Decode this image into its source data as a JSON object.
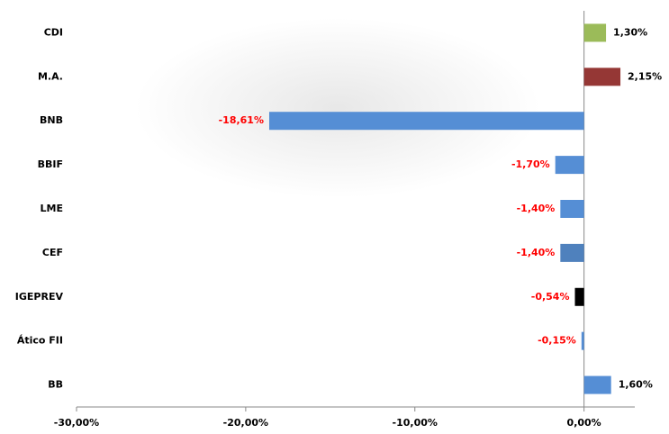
{
  "chart_data": {
    "type": "hbar",
    "categories": [
      "CDI",
      "M.A.",
      "BNB",
      "BBIF",
      "LME",
      "CEF",
      "IGEPREV",
      "Ático FII",
      "BB"
    ],
    "values": [
      1.3,
      2.15,
      -18.61,
      -1.7,
      -1.4,
      -1.4,
      -0.54,
      -0.15,
      1.6
    ],
    "value_labels": [
      "1,30%",
      "2,15%",
      "-18,61%",
      "-1,70%",
      "-1,40%",
      "-1,40%",
      "-0,54%",
      "-0,15%",
      "1,60%"
    ],
    "colors": [
      "#9bbb59",
      "#953735",
      "#558ed5",
      "#558ed5",
      "#558ed5",
      "#4f81bd",
      "#000000",
      "#558ed5",
      "#558ed5"
    ],
    "xlim": [
      -30,
      3
    ],
    "xticks": [
      {
        "value": -30,
        "label": "-30,00%"
      },
      {
        "value": -20,
        "label": "-20,00%"
      },
      {
        "value": -10,
        "label": "-10,00%"
      },
      {
        "value": 0,
        "label": "0,00%"
      }
    ]
  }
}
